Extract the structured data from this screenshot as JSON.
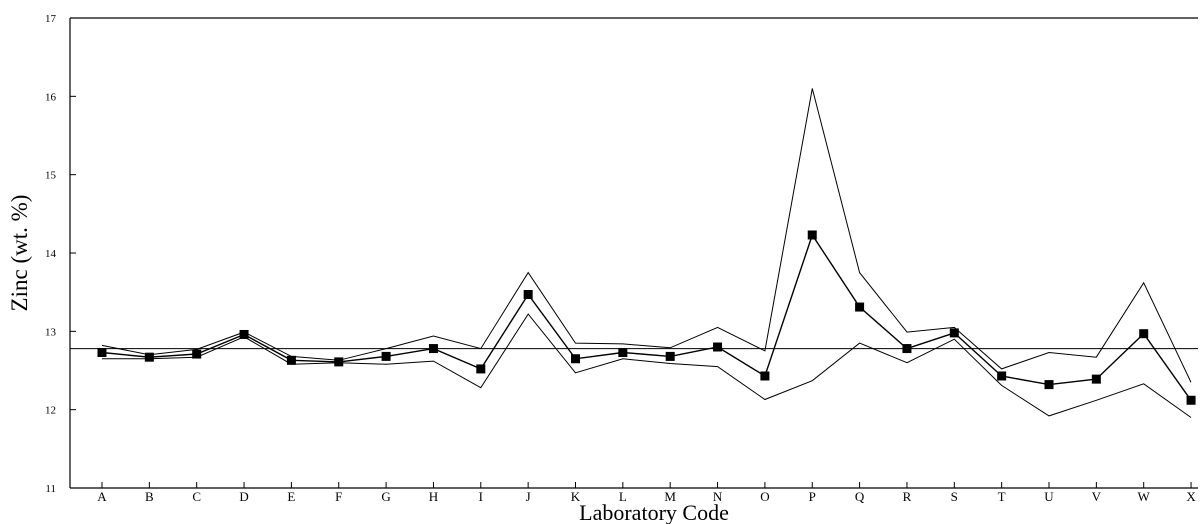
{
  "chart_data": {
    "type": "line",
    "title": "",
    "xlabel": "Laboratory Code",
    "ylabel": "Zinc (wt. %)",
    "ylim": [
      11,
      17
    ],
    "yticks": [
      11,
      12,
      13,
      14,
      15,
      16,
      17
    ],
    "grid": false,
    "legend": "none",
    "categories": [
      "A",
      "B",
      "C",
      "D",
      "E",
      "F",
      "G",
      "H",
      "I",
      "J",
      "K",
      "L",
      "M",
      "N",
      "O",
      "P",
      "Q",
      "R",
      "S",
      "T",
      "U",
      "V",
      "W",
      "X"
    ],
    "reference_value": 12.78,
    "series": [
      {
        "role": "upper",
        "marker": false,
        "values": [
          12.82,
          12.7,
          12.77,
          12.99,
          12.68,
          12.63,
          12.78,
          12.94,
          12.78,
          13.75,
          12.85,
          12.84,
          12.79,
          13.05,
          12.75,
          16.1,
          13.75,
          12.99,
          13.05,
          12.52,
          12.73,
          12.67,
          13.62,
          12.35
        ]
      },
      {
        "role": "mean",
        "marker": true,
        "values": [
          12.73,
          12.67,
          12.71,
          12.96,
          12.63,
          12.61,
          12.68,
          12.78,
          12.52,
          13.47,
          12.65,
          12.73,
          12.68,
          12.8,
          12.43,
          14.23,
          13.31,
          12.78,
          12.98,
          12.43,
          12.32,
          12.39,
          12.97,
          12.12
        ]
      },
      {
        "role": "lower",
        "marker": false,
        "values": [
          12.65,
          12.65,
          12.67,
          12.93,
          12.58,
          12.6,
          12.58,
          12.62,
          12.28,
          13.22,
          12.47,
          12.65,
          12.59,
          12.55,
          12.13,
          12.37,
          12.85,
          12.6,
          12.9,
          12.31,
          11.92,
          12.12,
          12.33,
          11.9
        ]
      }
    ]
  }
}
